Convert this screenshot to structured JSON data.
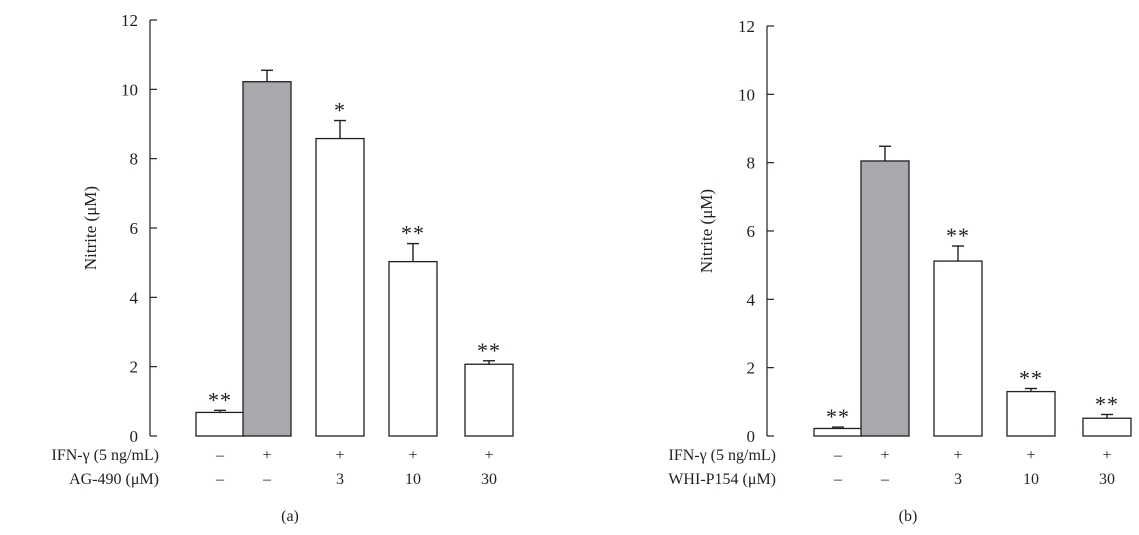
{
  "chart_data": [
    {
      "type": "bar",
      "panel_label": "(a)",
      "ylabel": "Nitrite (μM)",
      "ylim": [
        0,
        12
      ],
      "yticks": [
        "0",
        "2",
        "4",
        "6",
        "8",
        "10",
        "12"
      ],
      "categories": [
        "1",
        "2",
        "3",
        "4",
        "5"
      ],
      "values": [
        0.68,
        10.22,
        8.58,
        5.03,
        2.07
      ],
      "errors": [
        0.06,
        0.33,
        0.52,
        0.52,
        0.1
      ],
      "significance": [
        "**",
        "",
        "*",
        "**",
        "**"
      ],
      "bar_colors": [
        "#ffffff",
        "#a7a9ac",
        "#ffffff",
        "#ffffff",
        "#ffffff"
      ],
      "treatments": [
        {
          "label": "IFN-γ (5 ng/mL)",
          "values": [
            "–",
            "+",
            "+",
            "+",
            "+"
          ]
        },
        {
          "label": "AG-490 (μM)",
          "values": [
            "–",
            "–",
            "3",
            "10",
            "30"
          ]
        }
      ]
    },
    {
      "type": "bar",
      "panel_label": "(b)",
      "ylabel": "Nitrite (μM)",
      "ylim": [
        0,
        12
      ],
      "yticks": [
        "0",
        "2",
        "4",
        "6",
        "8",
        "10",
        "12"
      ],
      "categories": [
        "1",
        "2",
        "3",
        "4",
        "5"
      ],
      "values": [
        0.22,
        8.05,
        5.12,
        1.3,
        0.52
      ],
      "errors": [
        0.04,
        0.43,
        0.44,
        0.09,
        0.11
      ],
      "significance": [
        "**",
        "",
        "**",
        "**",
        "**"
      ],
      "bar_colors": [
        "#ffffff",
        "#a7a9ac",
        "#ffffff",
        "#ffffff",
        "#ffffff"
      ],
      "treatments": [
        {
          "label": "IFN-γ (5 ng/mL)",
          "values": [
            "–",
            "+",
            "+",
            "+",
            "+"
          ]
        },
        {
          "label": "WHI-P154 (μM)",
          "values": [
            "–",
            "–",
            "3",
            "10",
            "30"
          ]
        }
      ]
    }
  ]
}
